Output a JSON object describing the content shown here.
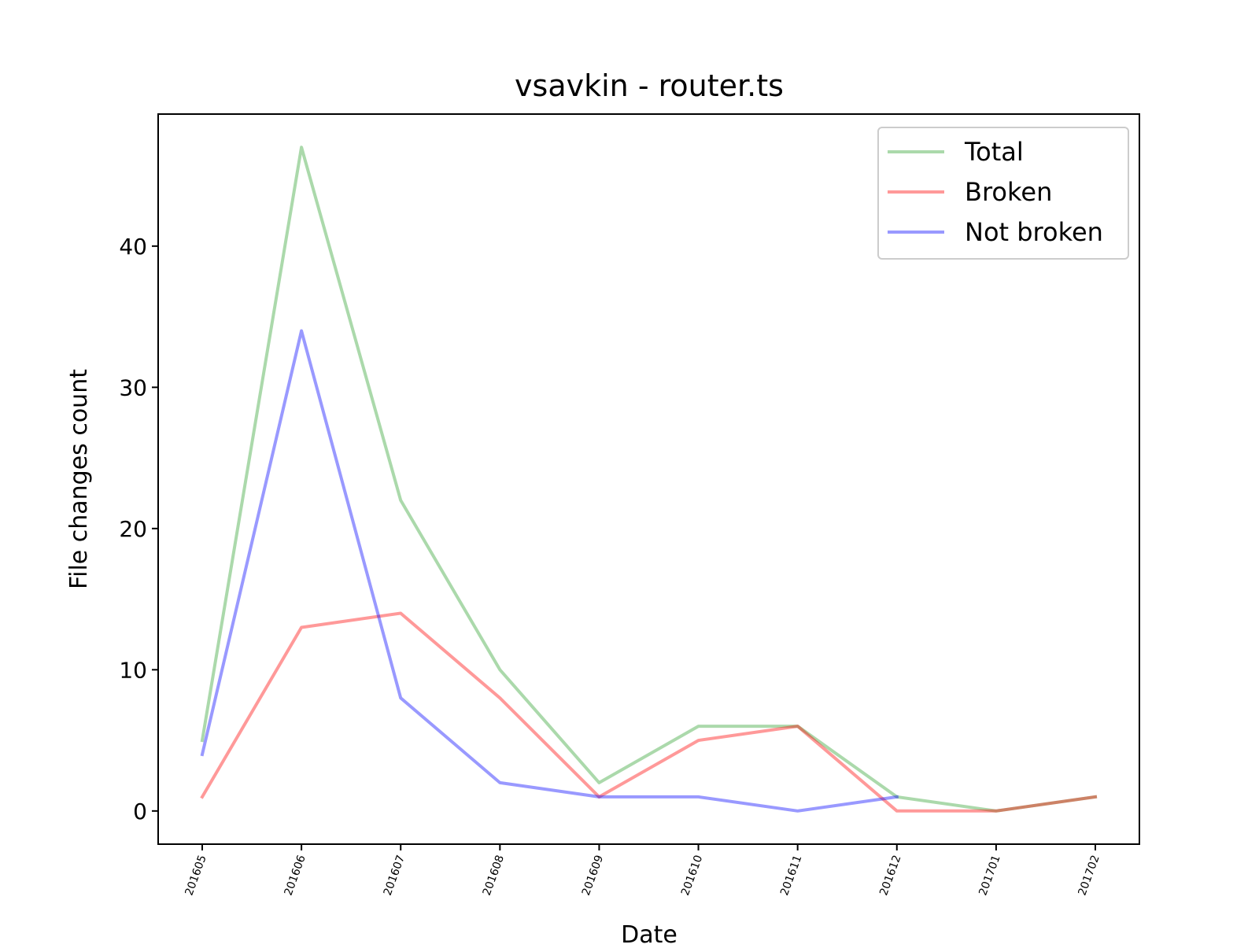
{
  "chart_data": {
    "type": "line",
    "title": "vsavkin - router.ts",
    "xlabel": "Date",
    "ylabel": "File changes count",
    "categories": [
      "201605",
      "201606",
      "201607",
      "201608",
      "201609",
      "201610",
      "201611",
      "201612",
      "201701",
      "201702"
    ],
    "series": [
      {
        "name": "Total",
        "color": "#2ca02c",
        "values": [
          5,
          47,
          22,
          10,
          2,
          6,
          6,
          1,
          0,
          1
        ]
      },
      {
        "name": "Broken",
        "color": "#ff0000",
        "values": [
          1,
          13,
          14,
          8,
          1,
          5,
          6,
          0,
          0,
          1
        ]
      },
      {
        "name": "Not broken",
        "color": "#0000ff",
        "values": [
          4,
          34,
          8,
          2,
          1,
          1,
          0,
          1,
          null,
          null
        ]
      }
    ],
    "yticks": [
      0,
      10,
      20,
      30,
      40
    ],
    "ylim": [
      -2.35,
      49.35
    ],
    "grid": false,
    "legend": "top-right"
  }
}
